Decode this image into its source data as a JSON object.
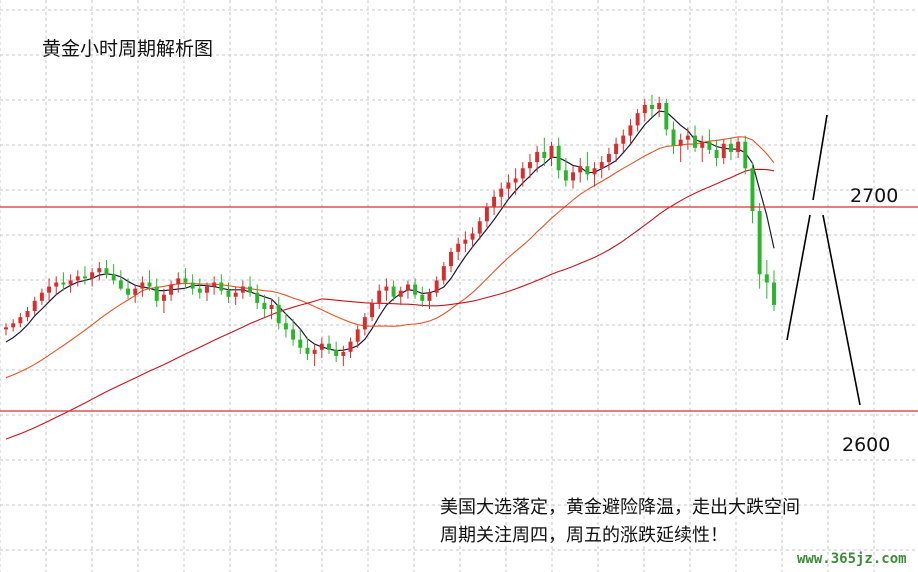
{
  "chart_data": {
    "type": "candlestick",
    "title": "黄金小时周期解析图",
    "y_labels": [
      {
        "value": 2700,
        "text": "2700"
      },
      {
        "value": 2600,
        "text": "2600"
      }
    ],
    "annotation_lines": [
      "美国大选落定，黄金避险降温，走出大跌空间",
      "周期关注周四，周五的涨跌延续性！"
    ],
    "watermark": "www.365jz.com",
    "grid": true,
    "horizontal_levels": [
      2700,
      2600
    ],
    "colors": {
      "up": "#d62d2d",
      "down": "#2bb52b",
      "ma_fast": "#1a1a3a",
      "ma_mid": "#e8542a",
      "ma_slow": "#c8141e",
      "level_line": "#d83030",
      "grid": "#c8c8c8",
      "watermark": "#3c8a3c"
    },
    "ohlc": [
      [
        2640,
        2643,
        2637,
        2641
      ],
      [
        2641,
        2645,
        2639,
        2643
      ],
      [
        2643,
        2648,
        2641,
        2646
      ],
      [
        2646,
        2651,
        2644,
        2649
      ],
      [
        2649,
        2656,
        2647,
        2654
      ],
      [
        2654,
        2660,
        2652,
        2658
      ],
      [
        2658,
        2665,
        2654,
        2661
      ],
      [
        2661,
        2666,
        2657,
        2663
      ],
      [
        2663,
        2668,
        2659,
        2662
      ],
      [
        2662,
        2667,
        2658,
        2664
      ],
      [
        2664,
        2669,
        2661,
        2666
      ],
      [
        2666,
        2671,
        2662,
        2665
      ],
      [
        2665,
        2670,
        2661,
        2668
      ],
      [
        2668,
        2673,
        2664,
        2670
      ],
      [
        2670,
        2674,
        2665,
        2667
      ],
      [
        2667,
        2672,
        2662,
        2664
      ],
      [
        2664,
        2669,
        2659,
        2660
      ],
      [
        2660,
        2665,
        2655,
        2657
      ],
      [
        2657,
        2662,
        2653,
        2660
      ],
      [
        2660,
        2666,
        2656,
        2663
      ],
      [
        2663,
        2669,
        2659,
        2661
      ],
      [
        2661,
        2665,
        2651,
        2654
      ],
      [
        2654,
        2660,
        2648,
        2657
      ],
      [
        2657,
        2664,
        2654,
        2662
      ],
      [
        2662,
        2668,
        2658,
        2665
      ],
      [
        2665,
        2670,
        2660,
        2663
      ],
      [
        2663,
        2667,
        2657,
        2660
      ],
      [
        2660,
        2665,
        2655,
        2658
      ],
      [
        2658,
        2663,
        2654,
        2661
      ],
      [
        2661,
        2666,
        2657,
        2663
      ],
      [
        2663,
        2667,
        2657,
        2659
      ],
      [
        2659,
        2663,
        2653,
        2656
      ],
      [
        2656,
        2661,
        2652,
        2658
      ],
      [
        2658,
        2664,
        2655,
        2661
      ],
      [
        2661,
        2666,
        2656,
        2658
      ],
      [
        2658,
        2662,
        2650,
        2653
      ],
      [
        2653,
        2657,
        2646,
        2650
      ],
      [
        2650,
        2655,
        2645,
        2652
      ],
      [
        2652,
        2656,
        2640,
        2643
      ],
      [
        2643,
        2648,
        2636,
        2640
      ],
      [
        2640,
        2645,
        2632,
        2635
      ],
      [
        2635,
        2640,
        2628,
        2631
      ],
      [
        2631,
        2636,
        2625,
        2628
      ],
      [
        2628,
        2633,
        2622,
        2630
      ],
      [
        2630,
        2636,
        2626,
        2633
      ],
      [
        2633,
        2637,
        2628,
        2630
      ],
      [
        2630,
        2634,
        2624,
        2627
      ],
      [
        2627,
        2632,
        2622,
        2629
      ],
      [
        2629,
        2636,
        2626,
        2634
      ],
      [
        2634,
        2642,
        2631,
        2640
      ],
      [
        2640,
        2648,
        2637,
        2646
      ],
      [
        2646,
        2655,
        2644,
        2653
      ],
      [
        2653,
        2662,
        2650,
        2659
      ],
      [
        2659,
        2665,
        2654,
        2661
      ],
      [
        2661,
        2664,
        2654,
        2656
      ],
      [
        2656,
        2661,
        2652,
        2659
      ],
      [
        2659,
        2664,
        2655,
        2662
      ],
      [
        2662,
        2665,
        2655,
        2657
      ],
      [
        2657,
        2661,
        2651,
        2654
      ],
      [
        2654,
        2660,
        2650,
        2658
      ],
      [
        2658,
        2666,
        2656,
        2664
      ],
      [
        2664,
        2673,
        2662,
        2671
      ],
      [
        2671,
        2680,
        2668,
        2678
      ],
      [
        2678,
        2685,
        2674,
        2682
      ],
      [
        2682,
        2688,
        2678,
        2684
      ],
      [
        2684,
        2690,
        2680,
        2687
      ],
      [
        2687,
        2695,
        2684,
        2693
      ],
      [
        2693,
        2702,
        2690,
        2700
      ],
      [
        2700,
        2708,
        2696,
        2705
      ],
      [
        2705,
        2712,
        2700,
        2709
      ],
      [
        2709,
        2716,
        2704,
        2712
      ],
      [
        2712,
        2719,
        2706,
        2714
      ],
      [
        2714,
        2722,
        2710,
        2719
      ],
      [
        2719,
        2726,
        2714,
        2722
      ],
      [
        2722,
        2730,
        2717,
        2727
      ],
      [
        2727,
        2734,
        2720,
        2724
      ],
      [
        2724,
        2732,
        2720,
        2730
      ],
      [
        2730,
        2734,
        2714,
        2718
      ],
      [
        2718,
        2724,
        2710,
        2713
      ],
      [
        2713,
        2720,
        2709,
        2717
      ],
      [
        2717,
        2724,
        2712,
        2720
      ],
      [
        2720,
        2727,
        2713,
        2716
      ],
      [
        2716,
        2722,
        2710,
        2719
      ],
      [
        2719,
        2725,
        2714,
        2722
      ],
      [
        2722,
        2729,
        2718,
        2726
      ],
      [
        2726,
        2734,
        2722,
        2731
      ],
      [
        2731,
        2738,
        2727,
        2735
      ],
      [
        2735,
        2743,
        2731,
        2740
      ],
      [
        2740,
        2748,
        2737,
        2746
      ],
      [
        2746,
        2753,
        2742,
        2750
      ],
      [
        2750,
        2755,
        2744,
        2748
      ],
      [
        2748,
        2754,
        2744,
        2751
      ],
      [
        2751,
        2753,
        2735,
        2738
      ],
      [
        2738,
        2742,
        2726,
        2730
      ],
      [
        2730,
        2736,
        2722,
        2733
      ],
      [
        2733,
        2739,
        2728,
        2735
      ],
      [
        2735,
        2740,
        2727,
        2729
      ],
      [
        2729,
        2735,
        2722,
        2732
      ],
      [
        2732,
        2738,
        2726,
        2728
      ],
      [
        2728,
        2733,
        2720,
        2724
      ],
      [
        2724,
        2733,
        2721,
        2731
      ],
      [
        2731,
        2734,
        2723,
        2727
      ],
      [
        2727,
        2734,
        2724,
        2732
      ],
      [
        2732,
        2735,
        2716,
        2719
      ],
      [
        2719,
        2722,
        2692,
        2698
      ],
      [
        2698,
        2702,
        2660,
        2667
      ],
      [
        2667,
        2674,
        2655,
        2663
      ],
      [
        2663,
        2669,
        2649,
        2652
      ]
    ]
  }
}
